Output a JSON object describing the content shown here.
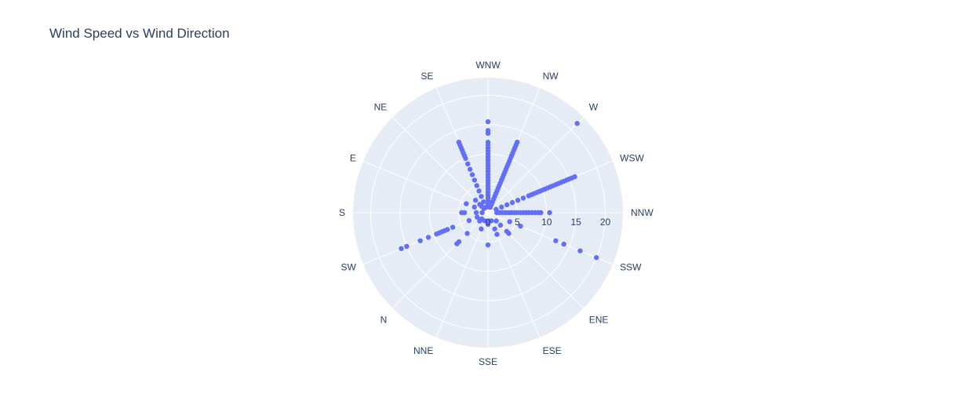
{
  "chart_data": {
    "type": "scatter",
    "subtype": "polar",
    "title": "Wind Speed vs Wind Direction",
    "angular_categories": [
      "NNW",
      "WSW",
      "W",
      "NW",
      "WNW",
      "SE",
      "NE",
      "E",
      "S",
      "SW",
      "N",
      "NNE",
      "SSE",
      "ESE",
      "ENE",
      "SSW"
    ],
    "angular_direction": "counterclockwise",
    "angular_rotation": 0,
    "radial_ticks": [
      0,
      5,
      10,
      15,
      20
    ],
    "radial_range": [
      0,
      23
    ],
    "grid": true,
    "background": "#e5ecf6",
    "marker_color": "#636efa",
    "series": [
      {
        "points": [
          {
            "theta": "NNW",
            "r": [
              1.5,
              2,
              2.5,
              3,
              3.5,
              4,
              4.5,
              5,
              5.5,
              6,
              6.5,
              7,
              7.5,
              8,
              8.5,
              9,
              10.5
            ]
          },
          {
            "theta": "WSW",
            "r": [
              1.5,
              2.5,
              3.5,
              4.5,
              5.5,
              6.5,
              7.5,
              8,
              8.5,
              9,
              9.5,
              10,
              10.5,
              11,
              11.5,
              12,
              12.5,
              13,
              13.5,
              14,
              14.5,
              15,
              15.5,
              16
            ]
          },
          {
            "theta": "W",
            "r": [
              21.5
            ]
          },
          {
            "theta": "NW",
            "r": [
              1,
              1.5,
              2,
              2.5,
              3,
              3.5,
              4,
              4.5,
              5,
              5.5,
              6,
              6.5,
              7,
              7.5,
              8,
              8.5,
              9,
              9.5,
              10,
              10.5,
              11,
              11.5,
              12,
              12.5,
              13
            ]
          },
          {
            "theta": "WNW",
            "r": [
              1,
              1.5,
              2,
              2.5,
              3,
              3.5,
              4,
              4.5,
              5,
              5.5,
              6,
              6.5,
              7,
              7.5,
              8,
              8.5,
              9,
              9.5,
              10,
              10.5,
              11,
              11.5,
              12,
              13.5,
              14,
              15.5
            ]
          },
          {
            "theta": "SE",
            "r": [
              1,
              2,
              3,
              4,
              5,
              6,
              7,
              8,
              9,
              10,
              10.5,
              11,
              11.5,
              12,
              12.5,
              13
            ]
          },
          {
            "theta": "NE",
            "r": [
              1,
              1.5,
              2,
              3
            ]
          },
          {
            "theta": "E",
            "r": [
              2.5,
              4
            ]
          },
          {
            "theta": "S",
            "r": [
              1,
              2,
              4,
              4.5
            ]
          },
          {
            "theta": "SW",
            "r": [
              2,
              3.5,
              6.5,
              7.5,
              8,
              8.5,
              9,
              9.5,
              11,
              12.5,
              15,
              16
            ]
          },
          {
            "theta": "N",
            "r": [
              1.5,
              2,
              5,
              7,
              7.5
            ]
          },
          {
            "theta": "NNE",
            "r": [
              1.5,
              3
            ]
          },
          {
            "theta": "SSE",
            "r": [
              1.5,
              2,
              5.5
            ]
          },
          {
            "theta": "ESE",
            "r": [
              1.5,
              3,
              4
            ]
          },
          {
            "theta": "ENE",
            "r": [
              2,
              3,
              4.5,
              5
            ]
          },
          {
            "theta": "SSW",
            "r": [
              4,
              6,
              12.5,
              14,
              17,
              20
            ]
          }
        ]
      }
    ]
  }
}
